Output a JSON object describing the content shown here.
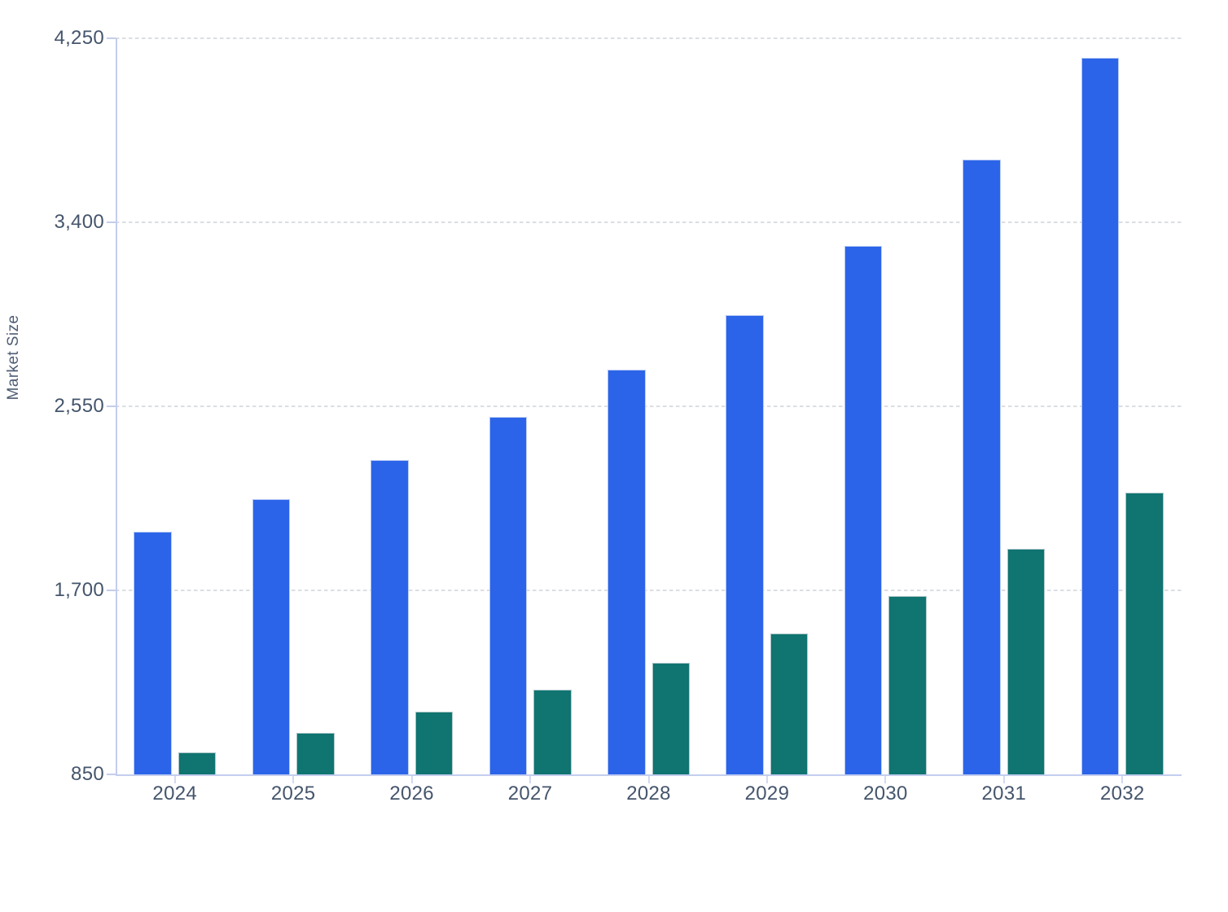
{
  "chart_data": {
    "type": "bar",
    "title": "",
    "xlabel": "",
    "ylabel": "Market Size",
    "categories": [
      "2024",
      "2025",
      "2026",
      "2027",
      "2028",
      "2029",
      "2030",
      "2031",
      "2032"
    ],
    "series": [
      {
        "name": "blue",
        "color": "#2b64e8",
        "border_color": "#b6c9f5",
        "values": [
          1970,
          2120,
          2300,
          2500,
          2720,
          2970,
          3290,
          3690,
          4160
        ]
      },
      {
        "name": "teal",
        "color": "#107470",
        "border_color": "#abc6c8",
        "values": [
          950,
          1040,
          1140,
          1240,
          1365,
          1500,
          1675,
          1890,
          2150
        ]
      }
    ],
    "y_tick_values": [
      850,
      1700,
      2550,
      3400,
      4250
    ],
    "y_tick_labels": [
      "850",
      "1,700",
      "2,550",
      "3,400",
      "4,250"
    ],
    "ylim": [
      850,
      4250
    ],
    "grid": "horizontal-dashed",
    "legend": "none"
  },
  "colors": {
    "background": "#ffffff",
    "axis_line": "#c3cdee",
    "x_tick_line": "#d2d9f1",
    "grid_line": "#dbdee2",
    "tick_label": "#45556c",
    "axis_title": "#4e5d74"
  }
}
